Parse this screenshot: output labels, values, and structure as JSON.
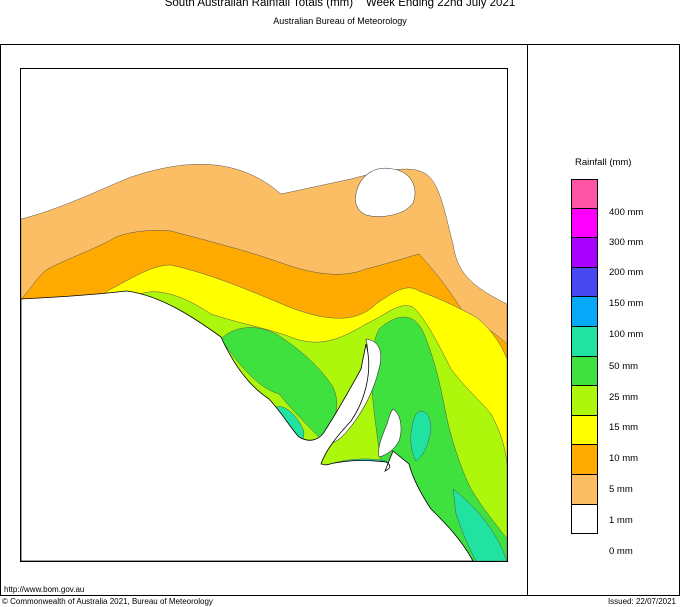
{
  "header": {
    "title": "South Australian Rainfall Totals (mm)    Week Ending 22nd July 2021",
    "subtitle": "Australian Bureau of Meteorology"
  },
  "legend": {
    "title": "Rainfall (mm)",
    "bands": [
      {
        "color": "#ff55a5"
      },
      {
        "color": "#ff00ff"
      },
      {
        "color": "#aa00ff"
      },
      {
        "color": "#4848f0"
      },
      {
        "color": "#05a9f7"
      },
      {
        "color": "#20e3a1"
      },
      {
        "color": "#3fe13f"
      },
      {
        "color": "#adf70d"
      },
      {
        "color": "#ffff00"
      },
      {
        "color": "#ffaa00"
      },
      {
        "color": "#fbbe64"
      },
      {
        "color": "#ffffff"
      }
    ],
    "labels": [
      "400 mm",
      "300 mm",
      "200 mm",
      "150 mm",
      "100 mm",
      "50 mm",
      "25 mm",
      "15 mm",
      "10 mm",
      "5 mm",
      "1 mm",
      "0 mm"
    ]
  },
  "footer": {
    "url": "http://www.bom.gov.au",
    "copyright": "© Commonwealth of Australia 2021, Bureau of Meteorology",
    "issued": "Issued: 22/07/2021"
  }
}
